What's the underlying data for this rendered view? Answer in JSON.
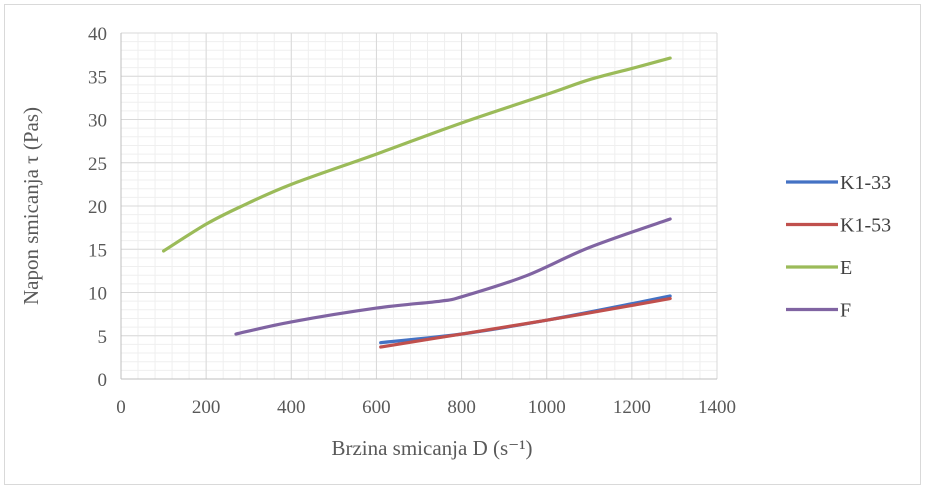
{
  "chart_data": {
    "type": "line",
    "title": "",
    "xlabel": "Brzina smicanja D (s⁻¹)",
    "ylabel": "Napon smicanja τ (Pas)",
    "xlim": [
      0,
      1400
    ],
    "ylim": [
      0,
      40
    ],
    "x_ticks": [
      "0",
      "200",
      "400",
      "600",
      "800",
      "1000",
      "1200",
      "1400"
    ],
    "y_ticks": [
      "0",
      "5",
      "10",
      "15",
      "20",
      "25",
      "30",
      "35",
      "40"
    ],
    "x_tick_values": [
      0,
      200,
      400,
      600,
      800,
      1000,
      1200,
      1400
    ],
    "y_tick_values": [
      0,
      5,
      10,
      15,
      20,
      25,
      30,
      35,
      40
    ],
    "grid": true,
    "minor_grid": true,
    "legend_position": "right",
    "series": [
      {
        "name": "K1-33",
        "color": "#4472C4",
        "x": [
          610,
          800,
          1000,
          1200,
          1290
        ],
        "y": [
          4.2,
          5.2,
          6.8,
          8.7,
          9.6
        ]
      },
      {
        "name": "K1-53",
        "color": "#C0504D",
        "x": [
          610,
          800,
          1000,
          1200,
          1290
        ],
        "y": [
          3.7,
          5.2,
          6.8,
          8.5,
          9.3
        ]
      },
      {
        "name": "E",
        "color": "#9BBB59",
        "x": [
          100,
          200,
          280,
          400,
          600,
          800,
          1000,
          1100,
          1200,
          1290
        ],
        "y": [
          14.8,
          17.9,
          19.9,
          22.5,
          26.0,
          29.6,
          32.9,
          34.6,
          35.9,
          37.1
        ]
      },
      {
        "name": "F",
        "color": "#8064A2",
        "x": [
          270,
          400,
          600,
          750,
          800,
          950,
          1100,
          1290
        ],
        "y": [
          5.2,
          6.6,
          8.2,
          9.0,
          9.5,
          11.9,
          15.2,
          18.5
        ]
      }
    ]
  }
}
